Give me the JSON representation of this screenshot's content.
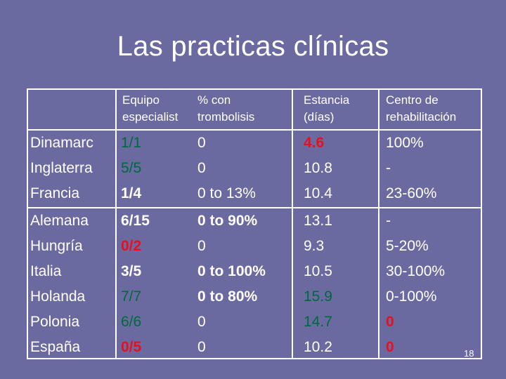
{
  "title": "Las practicas clínicas",
  "colors": {
    "background": "#6a6aa0",
    "text": "#ffffff",
    "red": "#e8101e",
    "green": "#00693c"
  },
  "table": {
    "headers": [
      "",
      "Equipo\nespecialist",
      "% con\ntrombolisis",
      "Estancia\n(días)",
      "Centro de\nrehabilitación"
    ],
    "rows": [
      {
        "country": "Dinamarc",
        "equipo": "1/1",
        "trombolisis": "0",
        "estancia": "4.6",
        "centro": "100%"
      },
      {
        "country": "Inglaterra",
        "equipo": "5/5",
        "trombolisis": "0",
        "estancia": "10.8",
        "centro": "-"
      },
      {
        "country": "Francia",
        "equipo": "1/4",
        "trombolisis": "0 to 13%",
        "estancia": "10.4",
        "centro": "23-60%"
      },
      {
        "country": "Alemana",
        "equipo": "6/15",
        "trombolisis": "0 to 90%",
        "estancia": "13.1",
        "centro": "-"
      },
      {
        "country": "Hungría",
        "equipo": "0/2",
        "trombolisis": "0",
        "estancia": "9.3",
        "centro": "5-20%"
      },
      {
        "country": "Italia",
        "equipo": "3/5",
        "trombolisis": "0 to 100%",
        "estancia": "10.5",
        "centro": "30-100%"
      },
      {
        "country": "Holanda",
        "equipo": "7/7",
        "trombolisis": "0 to 80%",
        "estancia": "15.9",
        "centro": "0-100%"
      },
      {
        "country": "Polonia",
        "equipo": "6/6",
        "trombolisis": "0",
        "estancia": "14.7",
        "centro": "0"
      },
      {
        "country": "España",
        "equipo": "0/5",
        "trombolisis": "0",
        "estancia": "10.2",
        "centro": "0"
      }
    ]
  },
  "page_number": "18"
}
